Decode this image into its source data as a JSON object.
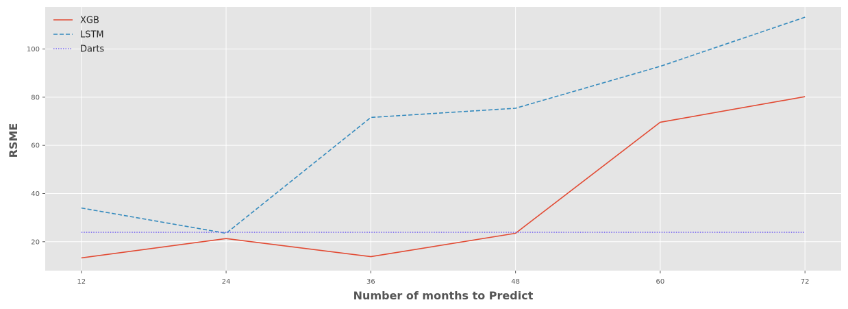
{
  "chart_data": {
    "type": "line",
    "title": "",
    "xlabel": "Number of months to Predict",
    "ylabel": "RSME",
    "x": [
      12,
      24,
      36,
      48,
      60,
      72
    ],
    "xticks": [
      "12",
      "24",
      "36",
      "48",
      "60",
      "72"
    ],
    "yticks": [
      "20",
      "40",
      "60",
      "80",
      "100"
    ],
    "xlim": [
      9,
      75
    ],
    "ylim": [
      8,
      117.5
    ],
    "grid": true,
    "legend_position": "top-left",
    "series": [
      {
        "name": "XGB",
        "values": [
          13.3,
          21.3,
          13.8,
          23.5,
          69.6,
          80.2
        ],
        "color": "#E24A33",
        "style": "solid"
      },
      {
        "name": "LSTM",
        "values": [
          34.0,
          23.5,
          71.6,
          75.4,
          92.8,
          113.2
        ],
        "color": "#348ABD",
        "style": "dashed"
      },
      {
        "name": "Darts",
        "values": [
          23.9,
          23.9,
          23.9,
          23.9,
          23.9,
          23.9
        ],
        "color": "#7A68F0",
        "style": "dotted"
      }
    ]
  }
}
